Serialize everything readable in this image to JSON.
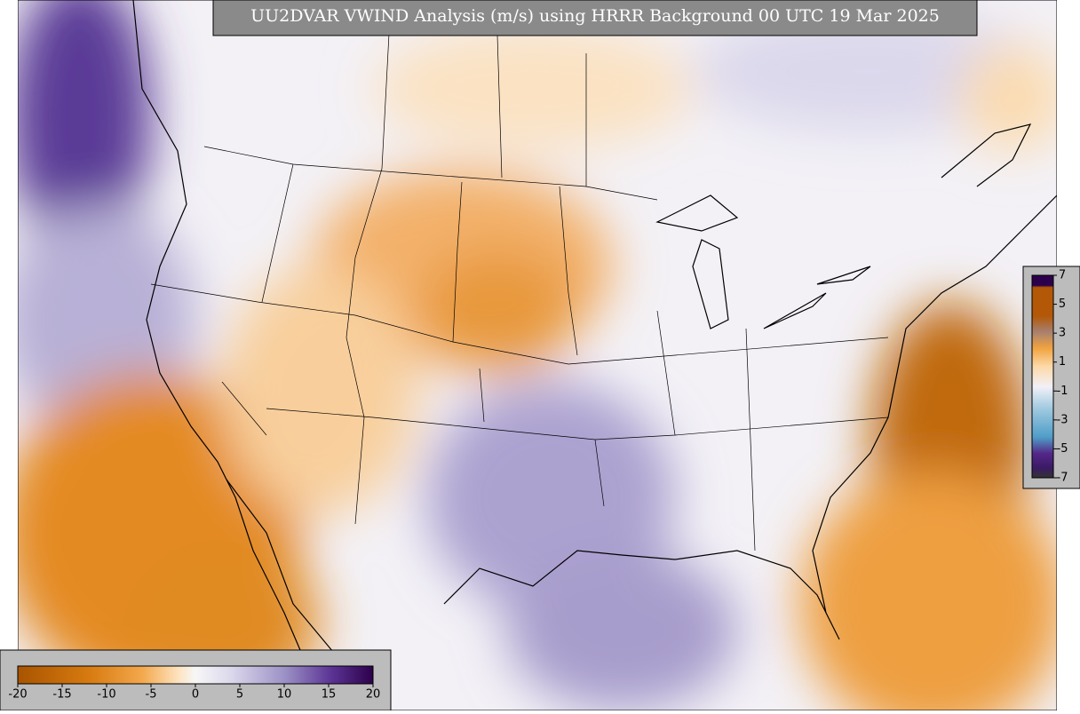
{
  "title": "UU2DVAR VWIND Analysis (m/s) using HRRR Background 00 UTC 19 Mar 2025",
  "colorbar_bottom": {
    "lim": [
      -20,
      20
    ],
    "ticks": [
      -20,
      -15,
      -10,
      -5,
      0,
      5,
      10,
      15,
      20
    ]
  },
  "colorbar_right": {
    "lim": [
      -7,
      7
    ],
    "ticks": [
      7,
      5,
      3,
      1,
      -1,
      -3,
      -5,
      -7
    ]
  }
}
